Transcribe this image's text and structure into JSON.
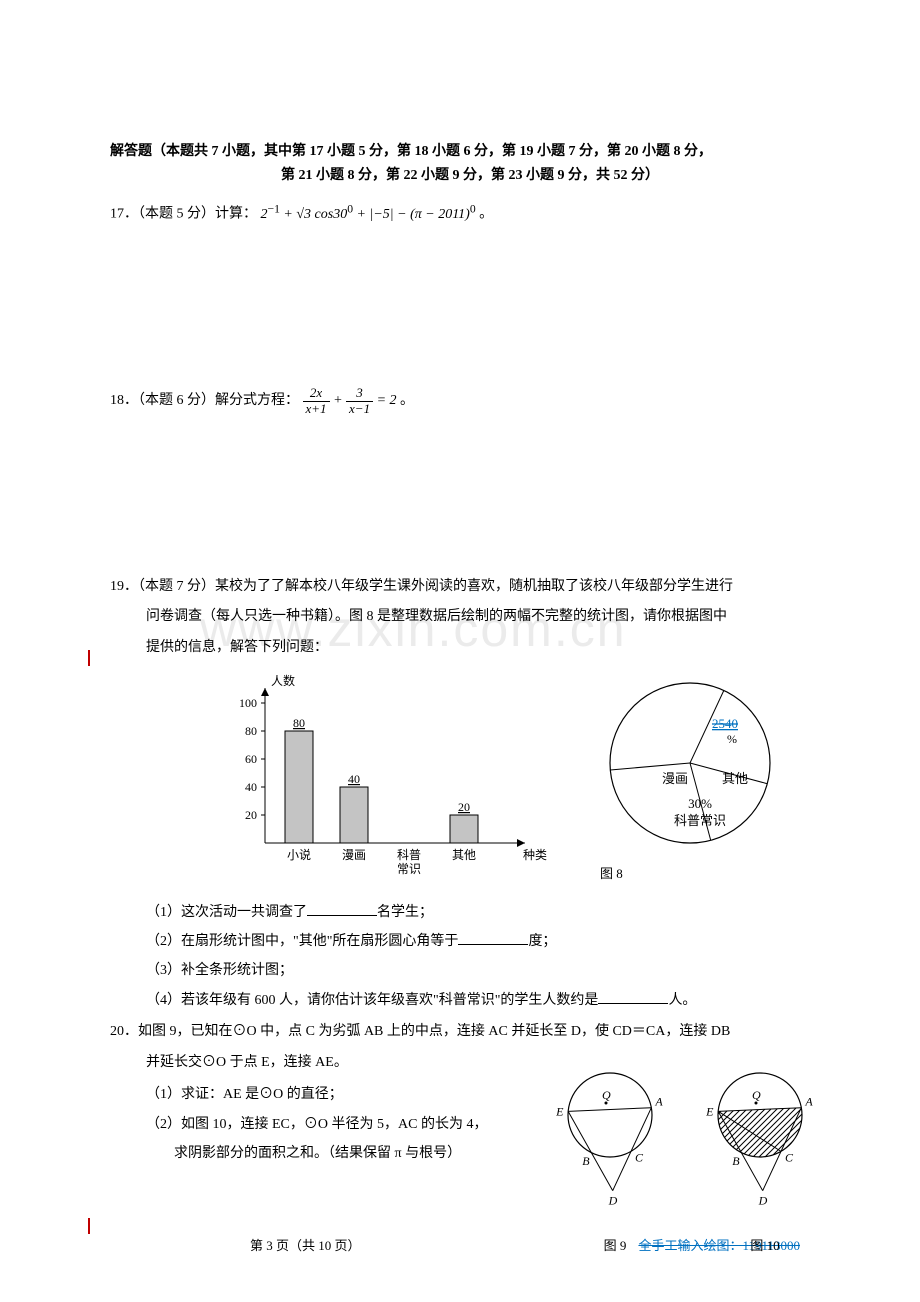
{
  "section": {
    "title": "解答题（本题共 7 小题，其中第 17 小题 5 分，第 18 小题 6 分，第 19 小题 7 分，第 20 小题 8 分，",
    "title2": "第 21 小题 8 分，第 22 小题 9 分，第 23 小题 9 分，共 52 分）"
  },
  "q17": {
    "prefix": "17．（本题 5 分）计算：",
    "eq_tail": "。"
  },
  "q18": {
    "prefix": "18．（本题 6 分）解分式方程：",
    "eq_tail": "。"
  },
  "q19": {
    "line1": "19．（本题 7 分）某校为了了解本校八年级学生课外阅读的喜欢，随机抽取了该校八年级部分学生进行",
    "line2": "问卷调查（每人只选一种书籍）。图 8 是整理数据后绘制的两幅不完整的统计图，请你根据图中",
    "line3": "提供的信息，解答下列问题：",
    "sub1_a": "（1）这次活动一共调查了",
    "sub1_b": "名学生；",
    "sub2_a": "（2）在扇形统计图中，\"其他\"所在扇形圆心角等于",
    "sub2_b": "度；",
    "sub3": "（3）补全条形统计图；",
    "sub4_a": "（4）若该年级有 600 人，请你估计该年级喜欢\"科普常识\"的学生人数约是",
    "sub4_b": "人。"
  },
  "q20": {
    "line1": "20．如图 9，已知在⊙O 中，点 C 为劣弧 AB 上的中点，连接 AC 并延长至 D，使 CD＝CA，连接 DB",
    "line2": "并延长交⊙O 于点 E，连接 AE。",
    "sub1": "（1）求证：AE 是⊙O 的直径；",
    "sub2a": "（2）如图 10，连接 EC，⊙O 半径为 5，AC 的长为 4，",
    "sub2b": "求阴影部分的面积之和。（结果保留 π 与根号）"
  },
  "barChart": {
    "yLabel": "人数",
    "xLabel": "种类",
    "yMax": 100,
    "yTicks": [
      20,
      40,
      60,
      80,
      100
    ],
    "bars": [
      {
        "label": "小说",
        "value": 80,
        "showValue": "80"
      },
      {
        "label": "漫画",
        "value": 40,
        "showValue": "40"
      },
      {
        "label": "科普\n常识",
        "value": 0,
        "showValue": ""
      },
      {
        "label": "其他",
        "value": 20,
        "showValue": "20"
      }
    ],
    "barColor": "#c4c4c4",
    "barStroke": "#000000",
    "axisColor": "#000000",
    "tickFont": 12,
    "valueFont": 12
  },
  "pieChart": {
    "label": "图 8",
    "segments": {
      "novel": {
        "text": "",
        "color": "#ffffff"
      },
      "comic": {
        "text": "漫画",
        "color": "#ffffff"
      },
      "science": {
        "text": "科普常识",
        "pct": "30%",
        "color": "#ffffff"
      },
      "other": {
        "text": "其他",
        "topText": "2540",
        "topText2": "%"
      }
    },
    "stroke": "#000000"
  },
  "circleFigs": {
    "labels": {
      "O": "O",
      "A": "A",
      "B": "B",
      "C": "C",
      "D": "D",
      "E": "E",
      "Q": "Q"
    },
    "fig9": "图 9",
    "fig10": "图 10"
  },
  "footer": {
    "left": "第 3 页（共 10 页）",
    "right": "全手工输入绘图：119113000"
  },
  "watermark": "www.zixin.com.cn"
}
